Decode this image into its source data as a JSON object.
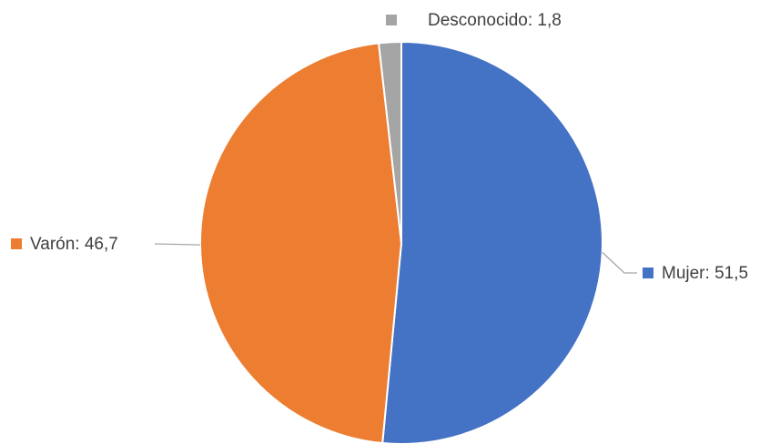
{
  "chart_data": {
    "type": "pie",
    "series": [
      {
        "name": "Mujer",
        "value": 51.5,
        "label": "Mujer: 51,5",
        "color": "#4472C4"
      },
      {
        "name": "Varón",
        "value": 46.7,
        "label": "Varón: 46,7",
        "color": "#ED7D31"
      },
      {
        "name": "Desconocido",
        "value": 1.8,
        "label": "Desconocido: 1,8",
        "color": "#A5A5A5"
      }
    ],
    "start": "12 o'clock",
    "direction": "clockwise",
    "labels": "outside with leader lines and color markers"
  }
}
